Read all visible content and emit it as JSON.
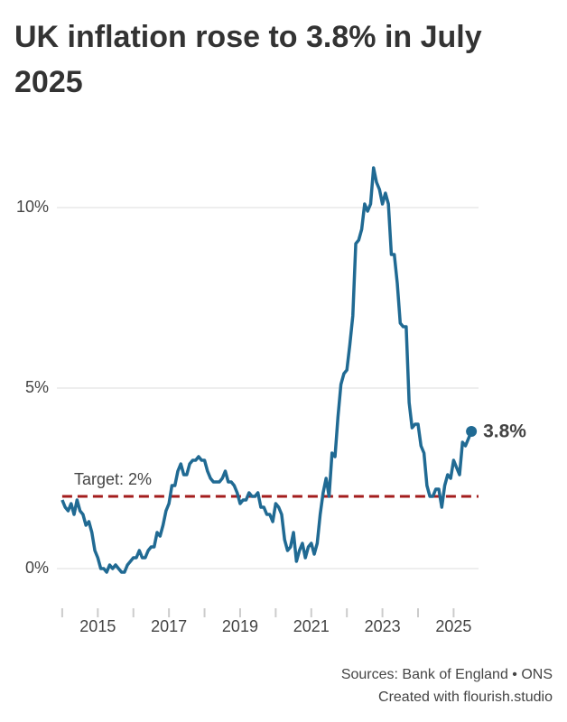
{
  "chart_data": {
    "type": "line",
    "title": "UK inflation rose to 3.8% in July 2025",
    "x": [
      2014,
      2014.083,
      2014.167,
      2014.25,
      2014.333,
      2014.417,
      2014.5,
      2014.583,
      2014.667,
      2014.75,
      2014.833,
      2014.917,
      2015,
      2015.083,
      2015.167,
      2015.25,
      2015.333,
      2015.417,
      2015.5,
      2015.583,
      2015.667,
      2015.75,
      2015.833,
      2015.917,
      2016,
      2016.083,
      2016.167,
      2016.25,
      2016.333,
      2016.417,
      2016.5,
      2016.583,
      2016.667,
      2016.75,
      2016.833,
      2016.917,
      2017,
      2017.083,
      2017.167,
      2017.25,
      2017.333,
      2017.417,
      2017.5,
      2017.583,
      2017.667,
      2017.75,
      2017.833,
      2017.917,
      2018,
      2018.083,
      2018.167,
      2018.25,
      2018.333,
      2018.417,
      2018.5,
      2018.583,
      2018.667,
      2018.75,
      2018.833,
      2018.917,
      2019,
      2019.083,
      2019.167,
      2019.25,
      2019.333,
      2019.417,
      2019.5,
      2019.583,
      2019.667,
      2019.75,
      2019.833,
      2019.917,
      2020,
      2020.083,
      2020.167,
      2020.25,
      2020.333,
      2020.417,
      2020.5,
      2020.583,
      2020.667,
      2020.75,
      2020.833,
      2020.917,
      2021,
      2021.083,
      2021.167,
      2021.25,
      2021.333,
      2021.417,
      2021.5,
      2021.583,
      2021.667,
      2021.75,
      2021.833,
      2021.917,
      2022,
      2022.083,
      2022.167,
      2022.25,
      2022.333,
      2022.417,
      2022.5,
      2022.583,
      2022.667,
      2022.75,
      2022.833,
      2022.917,
      2023,
      2023.083,
      2023.167,
      2023.25,
      2023.333,
      2023.417,
      2023.5,
      2023.583,
      2023.667,
      2023.75,
      2023.833,
      2023.917,
      2024,
      2024.083,
      2024.167,
      2024.25,
      2024.333,
      2024.417,
      2024.5,
      2024.583,
      2024.667,
      2024.75,
      2024.833,
      2024.917,
      2025,
      2025.083,
      2025.167,
      2025.25,
      2025.333,
      2025.417,
      2025.5
    ],
    "values": [
      1.9,
      1.7,
      1.6,
      1.8,
      1.5,
      1.9,
      1.6,
      1.5,
      1.2,
      1.3,
      1.0,
      0.5,
      0.3,
      0.0,
      0.0,
      -0.1,
      0.1,
      0.0,
      0.1,
      0.0,
      -0.1,
      -0.1,
      0.1,
      0.2,
      0.3,
      0.3,
      0.5,
      0.3,
      0.3,
      0.5,
      0.6,
      0.6,
      1.0,
      0.9,
      1.2,
      1.6,
      1.8,
      2.3,
      2.3,
      2.7,
      2.9,
      2.6,
      2.6,
      2.9,
      3.0,
      3.0,
      3.1,
      3.0,
      3.0,
      2.7,
      2.5,
      2.4,
      2.4,
      2.4,
      2.5,
      2.7,
      2.4,
      2.4,
      2.3,
      2.1,
      1.8,
      1.9,
      1.9,
      2.1,
      2.0,
      2.0,
      2.1,
      1.7,
      1.7,
      1.5,
      1.5,
      1.3,
      1.8,
      1.7,
      1.5,
      0.8,
      0.5,
      0.6,
      1.0,
      0.2,
      0.5,
      0.7,
      0.3,
      0.6,
      0.7,
      0.4,
      0.7,
      1.5,
      2.1,
      2.5,
      2.0,
      3.2,
      3.1,
      4.2,
      5.1,
      5.4,
      5.5,
      6.2,
      7.0,
      9.0,
      9.1,
      9.4,
      10.1,
      9.9,
      10.1,
      11.1,
      10.7,
      10.5,
      10.1,
      10.4,
      10.1,
      8.7,
      8.7,
      7.9,
      6.8,
      6.7,
      6.7,
      4.6,
      3.9,
      4.0,
      4.0,
      3.4,
      3.2,
      2.3,
      2.0,
      2.0,
      2.2,
      2.2,
      1.7,
      2.3,
      2.6,
      2.5,
      3.0,
      2.8,
      2.6,
      3.5,
      3.4,
      3.6,
      3.8
    ],
    "color": "#206a93",
    "end_label": "3.8%",
    "reference_line": {
      "value": 2,
      "label": "Target: 2%",
      "color": "#a31c1c"
    },
    "xlim": [
      2013.85,
      2025.7
    ],
    "xticks": [
      2015,
      2017,
      2019,
      2021,
      2023,
      2025
    ],
    "xminorticks": [
      2014,
      2016,
      2018,
      2020,
      2022,
      2024
    ],
    "ylim": [
      -1.1,
      11.5
    ],
    "yticks": [
      {
        "value": 0,
        "label": "0%"
      },
      {
        "value": 5,
        "label": "5%"
      },
      {
        "value": 10,
        "label": "10%"
      }
    ],
    "grid": true,
    "source": "Sources: Bank of England • ONS",
    "credit": "Created with flourish.studio"
  }
}
